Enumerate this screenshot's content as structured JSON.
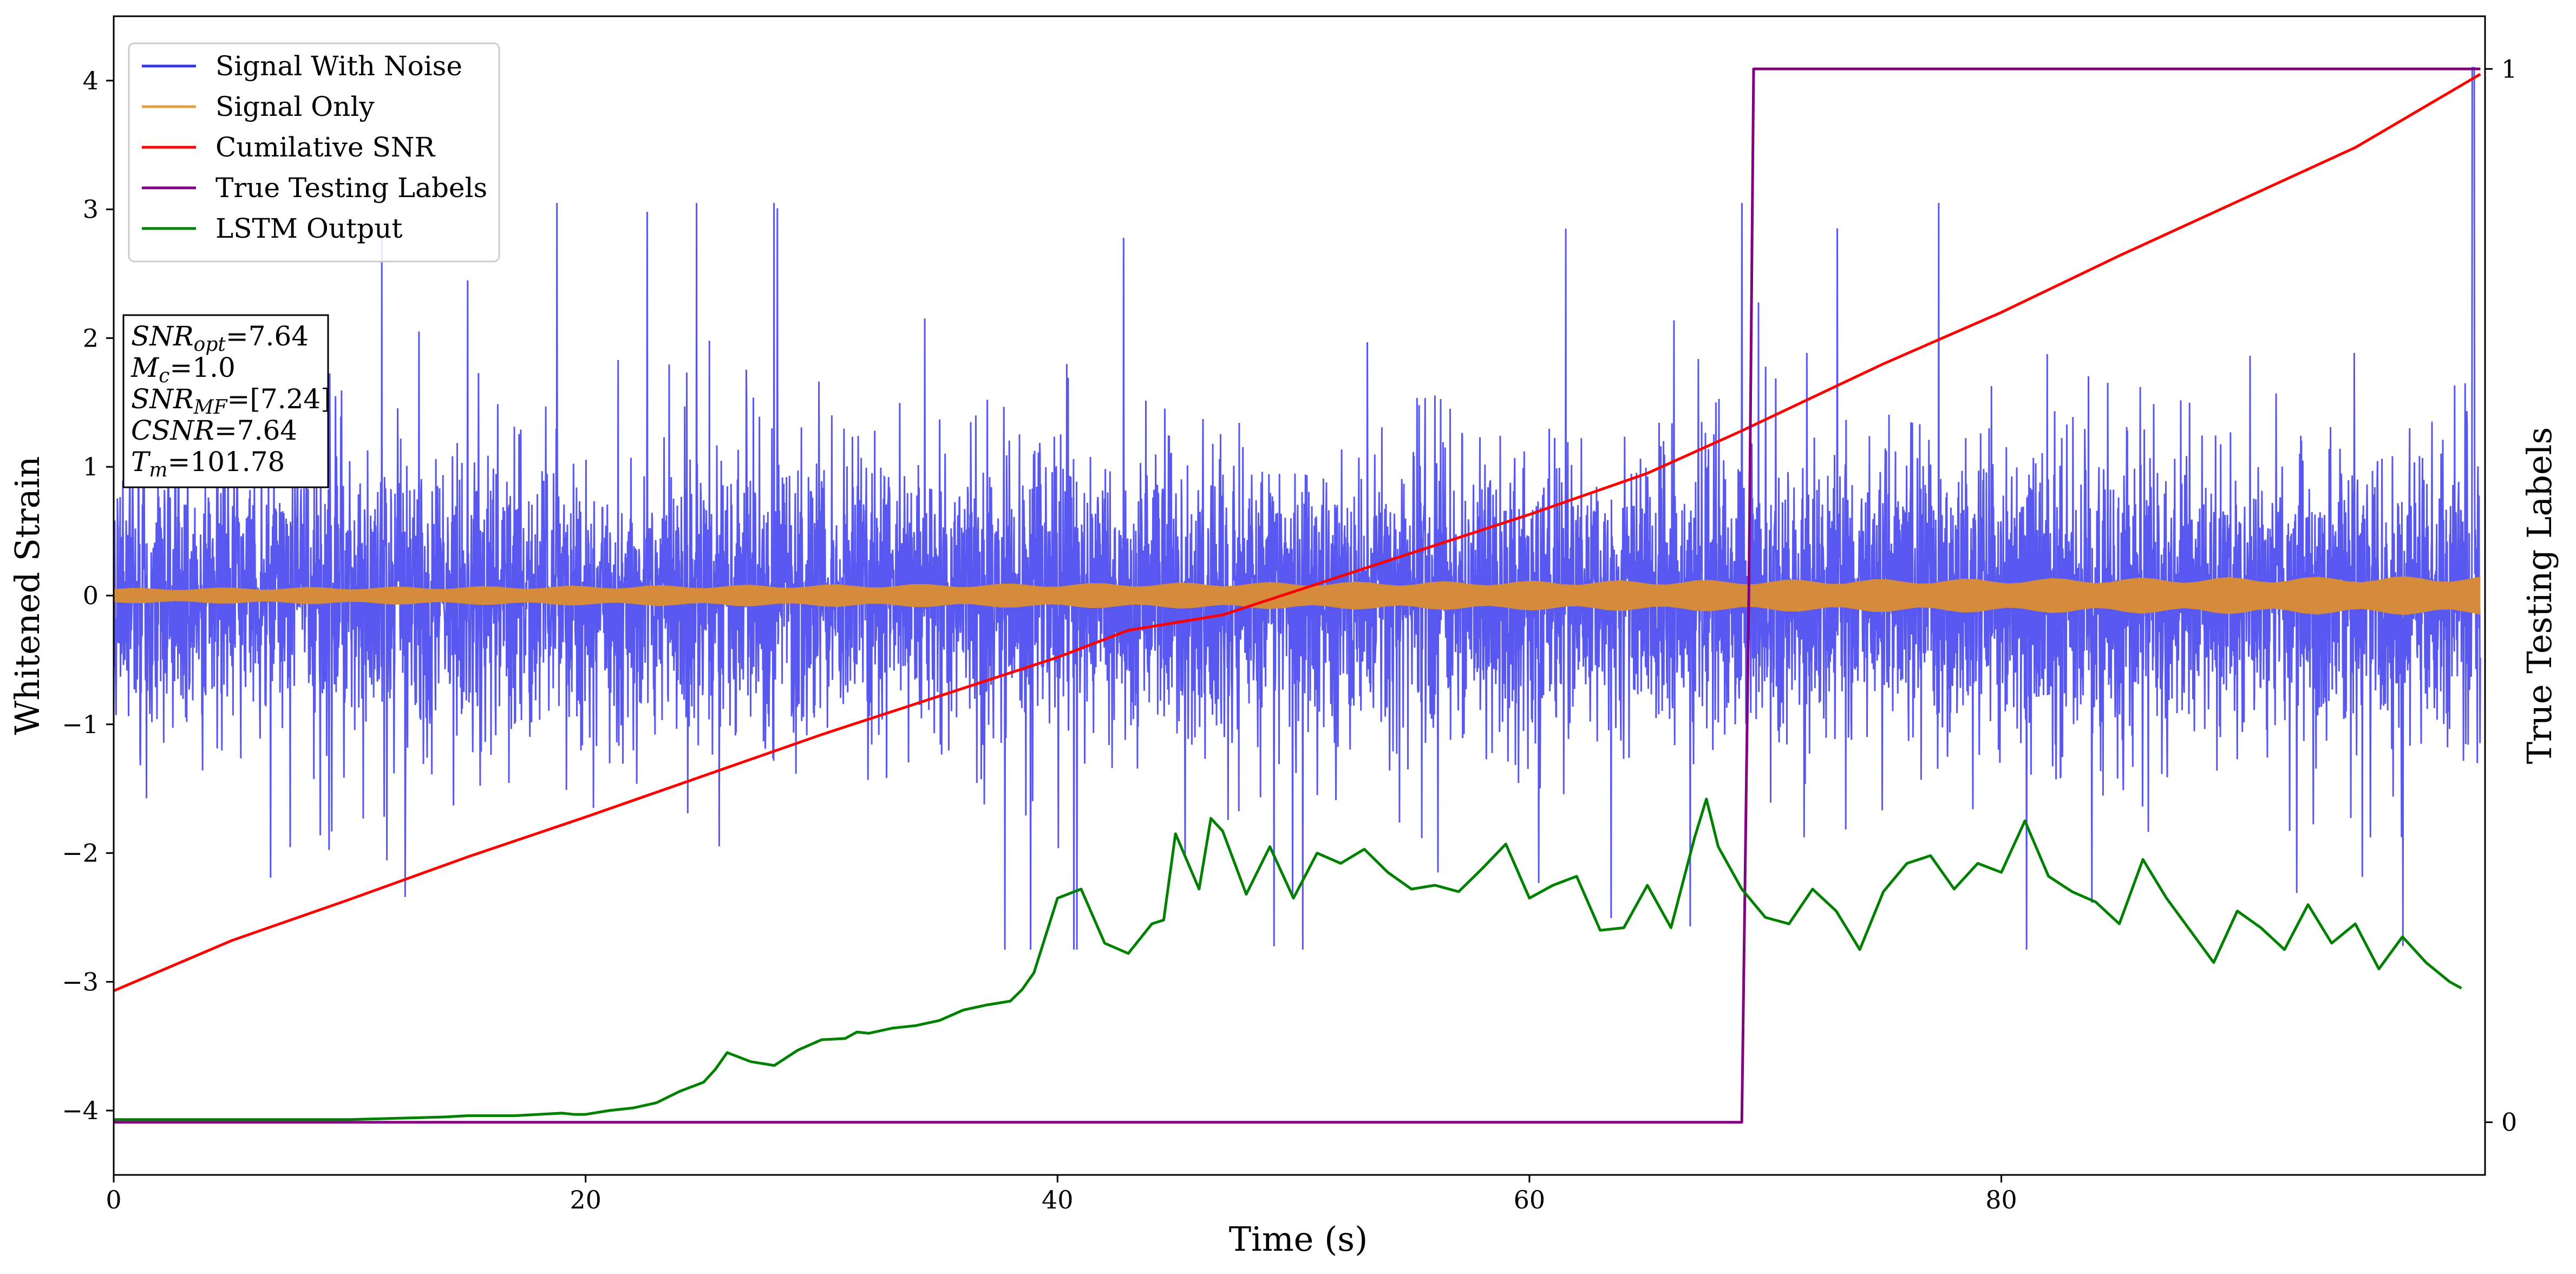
{
  "chart_data": {
    "type": "line",
    "xlabel": "Time (s)",
    "ylabel": "Whitened Strain",
    "y2label": "True Testing Labels",
    "xlim": [
      0,
      100.5
    ],
    "ylim": [
      -4.5,
      4.5
    ],
    "y2lim": [
      -0.05,
      1.05
    ],
    "x_ticks": [
      0,
      20,
      40,
      60,
      80
    ],
    "y_ticks": [
      -4,
      -3,
      -2,
      -1,
      0,
      1,
      2,
      3,
      4
    ],
    "y2_ticks": [
      0,
      1
    ],
    "legend_location": "upper left",
    "annotation": {
      "lines": [
        {
          "name": "SNR",
          "sub": "opt",
          "value": "=7.64"
        },
        {
          "name": "M",
          "sub": "c",
          "value": "=1.0"
        },
        {
          "name": "SNR",
          "sub": "MF",
          "value": "=[7.24]"
        },
        {
          "name": "CSNR",
          "sub": "",
          "value": "=7.64"
        },
        {
          "name": "T",
          "sub": "m",
          "value": "=101.78"
        }
      ]
    },
    "series": [
      {
        "name": "Signal With Noise",
        "axis": "left",
        "color": "#3333ee",
        "kind": "noise",
        "sigma": 0.85,
        "x_range": [
          0,
          100.3
        ],
        "end_spike": [
          100.0,
          4.1
        ]
      },
      {
        "name": "Signal Only",
        "axis": "left",
        "color": "#e0a040",
        "band_color": "#d48c3c",
        "kind": "chirp_band",
        "x_range": [
          0,
          100.3
        ],
        "amplitude_start": 0.05,
        "amplitude_end": 0.13
      },
      {
        "name": "Cumilative SNR",
        "axis": "left",
        "color": "#ff0000",
        "x": [
          0,
          5,
          10,
          15,
          20,
          25,
          30,
          35,
          40,
          43,
          47,
          50,
          55,
          60,
          65,
          69,
          75,
          80,
          85,
          90,
          95,
          100.3
        ],
        "y": [
          -3.07,
          -2.68,
          -2.36,
          -2.03,
          -1.72,
          -1.4,
          -1.08,
          -0.78,
          -0.48,
          -0.27,
          -0.15,
          0.03,
          0.33,
          0.63,
          0.95,
          1.28,
          1.8,
          2.2,
          2.64,
          3.06,
          3.48,
          4.05
        ]
      },
      {
        "name": "True Testing Labels",
        "axis": "right",
        "color": "#800080",
        "x": [
          0,
          69.0,
          69.3,
          69.5,
          100.3
        ],
        "y": [
          0,
          0,
          0.5,
          1,
          1
        ]
      },
      {
        "name": "LSTM Output",
        "axis": "left",
        "color": "#008000",
        "x": [
          0,
          10,
          12,
          14,
          15,
          16,
          17,
          18,
          19,
          19.5,
          20,
          21,
          22,
          23,
          24,
          25,
          25.5,
          26,
          27,
          28,
          29,
          30,
          31,
          31.5,
          32,
          33,
          34,
          35,
          36,
          37,
          38,
          38.5,
          39,
          40,
          41,
          42,
          43,
          44,
          44.5,
          45,
          46,
          46.5,
          47,
          48,
          49,
          50,
          51,
          52,
          53,
          54,
          55,
          56,
          57,
          58,
          59,
          60,
          61,
          62,
          63,
          64,
          65,
          66,
          67,
          67.5,
          68,
          69,
          70,
          71,
          72,
          73,
          74,
          75,
          76,
          77,
          78,
          79,
          80,
          81,
          82,
          83,
          84,
          85,
          86,
          87,
          88,
          89,
          90,
          91,
          92,
          93,
          94,
          95,
          96,
          97,
          98,
          99,
          99.5
        ],
        "y": [
          -4.07,
          -4.07,
          -4.06,
          -4.05,
          -4.04,
          -4.04,
          -4.04,
          -4.03,
          -4.02,
          -4.03,
          -4.03,
          -4.0,
          -3.98,
          -3.94,
          -3.85,
          -3.78,
          -3.68,
          -3.55,
          -3.62,
          -3.65,
          -3.53,
          -3.45,
          -3.44,
          -3.39,
          -3.4,
          -3.36,
          -3.34,
          -3.3,
          -3.22,
          -3.18,
          -3.15,
          -3.06,
          -2.93,
          -2.35,
          -2.28,
          -2.7,
          -2.78,
          -2.55,
          -2.52,
          -1.85,
          -2.28,
          -1.73,
          -1.83,
          -2.32,
          -1.95,
          -2.35,
          -2.0,
          -2.08,
          -1.97,
          -2.15,
          -2.28,
          -2.25,
          -2.3,
          -2.12,
          -1.93,
          -2.35,
          -2.25,
          -2.18,
          -2.6,
          -2.58,
          -2.25,
          -2.58,
          -1.88,
          -1.58,
          -1.95,
          -2.28,
          -2.5,
          -2.55,
          -2.28,
          -2.45,
          -2.75,
          -2.3,
          -2.08,
          -2.02,
          -2.28,
          -2.08,
          -2.15,
          -1.75,
          -2.18,
          -2.3,
          -2.38,
          -2.55,
          -2.05,
          -2.35,
          -2.6,
          -2.85,
          -2.45,
          -2.58,
          -2.75,
          -2.4,
          -2.7,
          -2.55,
          -2.9,
          -2.65,
          -2.85,
          -3.0,
          -3.05
        ]
      }
    ]
  }
}
